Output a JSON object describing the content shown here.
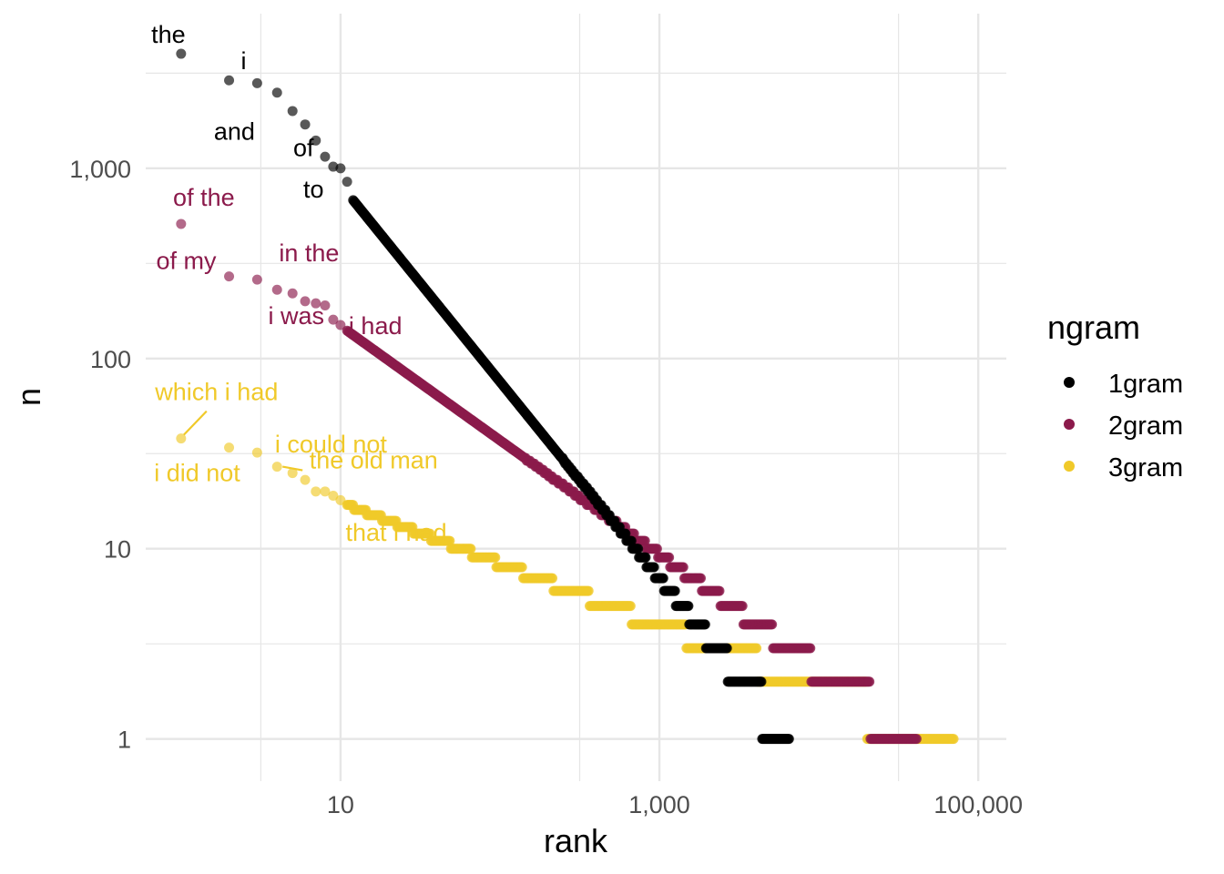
{
  "chart_data": {
    "type": "scatter",
    "title": "",
    "xlabel": "rank",
    "ylabel": "n",
    "x_scale": "log10",
    "y_scale": "log10",
    "xlim": [
      0.6,
      150000
    ],
    "ylim": [
      0.6,
      6500
    ],
    "x_ticks": [
      {
        "value": 10,
        "label": "10"
      },
      {
        "value": 1000,
        "label": "1,000"
      },
      {
        "value": 100000,
        "label": "100,000"
      }
    ],
    "y_ticks": [
      {
        "value": 1,
        "label": "1"
      },
      {
        "value": 10,
        "label": "10"
      },
      {
        "value": 100,
        "label": "100"
      },
      {
        "value": 1000,
        "label": "1,000"
      }
    ],
    "grid": true,
    "legend": {
      "title": "ngram",
      "position": "right"
    },
    "colors": {
      "1gram": "#000000",
      "2gram": "#8b1a4b",
      "3gram": "#f0c929",
      "grid": "#e6e6e6"
    },
    "series": [
      {
        "name": "1gram",
        "head_points": [
          [
            1,
            4000
          ],
          [
            2,
            2900
          ],
          [
            3,
            2800
          ],
          [
            4,
            2500
          ],
          [
            5,
            2000
          ],
          [
            6,
            1700
          ],
          [
            7,
            1400
          ],
          [
            8,
            1150
          ],
          [
            9,
            1020
          ],
          [
            10,
            1000
          ],
          [
            11,
            850
          ]
        ],
        "tail_rank_range": [
          12,
          6500
        ],
        "tail_n_range": [
          680,
          1
        ],
        "labels": [
          {
            "text": "the",
            "rank": 1,
            "n": 4000
          },
          {
            "text": "i",
            "rank": 2,
            "n": 2900
          },
          {
            "text": "and",
            "rank": 3,
            "n": 2800
          },
          {
            "text": "of",
            "rank": 4,
            "n": 2500
          },
          {
            "text": "to",
            "rank": 5,
            "n": 2000
          }
        ]
      },
      {
        "name": "2gram",
        "head_points": [
          [
            1,
            510
          ],
          [
            2,
            270
          ],
          [
            3,
            260
          ],
          [
            4,
            230
          ],
          [
            5,
            220
          ],
          [
            6,
            200
          ],
          [
            7,
            195
          ],
          [
            8,
            190
          ],
          [
            9,
            160
          ],
          [
            10,
            150
          ]
        ],
        "tail_rank_range": [
          11,
          41000
        ],
        "tail_n_range": [
          140,
          1
        ],
        "labels": [
          {
            "text": "of the",
            "rank": 1,
            "n": 510
          },
          {
            "text": "of my",
            "rank": 2,
            "n": 270
          },
          {
            "text": "in the",
            "rank": 3,
            "n": 260
          },
          {
            "text": "i was",
            "rank": 4,
            "n": 230
          },
          {
            "text": "i had",
            "rank": 5,
            "n": 220
          }
        ]
      },
      {
        "name": "3gram",
        "head_points": [
          [
            1,
            38
          ],
          [
            2,
            34
          ],
          [
            3,
            32
          ],
          [
            4,
            27
          ],
          [
            5,
            25
          ],
          [
            6,
            23
          ],
          [
            7,
            20
          ],
          [
            8,
            20
          ],
          [
            9,
            19
          ],
          [
            10,
            18
          ]
        ],
        "tail_rank_range": [
          11,
          70000
        ],
        "tail_n_range": [
          17,
          1
        ],
        "labels": [
          {
            "text": "which i had",
            "rank": 1,
            "n": 38
          },
          {
            "text": "i did not",
            "rank": 2,
            "n": 34
          },
          {
            "text": "i could not",
            "rank": 3,
            "n": 32
          },
          {
            "text": "the old man",
            "rank": 4,
            "n": 27
          },
          {
            "text": "that i had",
            "rank": 6,
            "n": 23
          }
        ]
      }
    ]
  }
}
